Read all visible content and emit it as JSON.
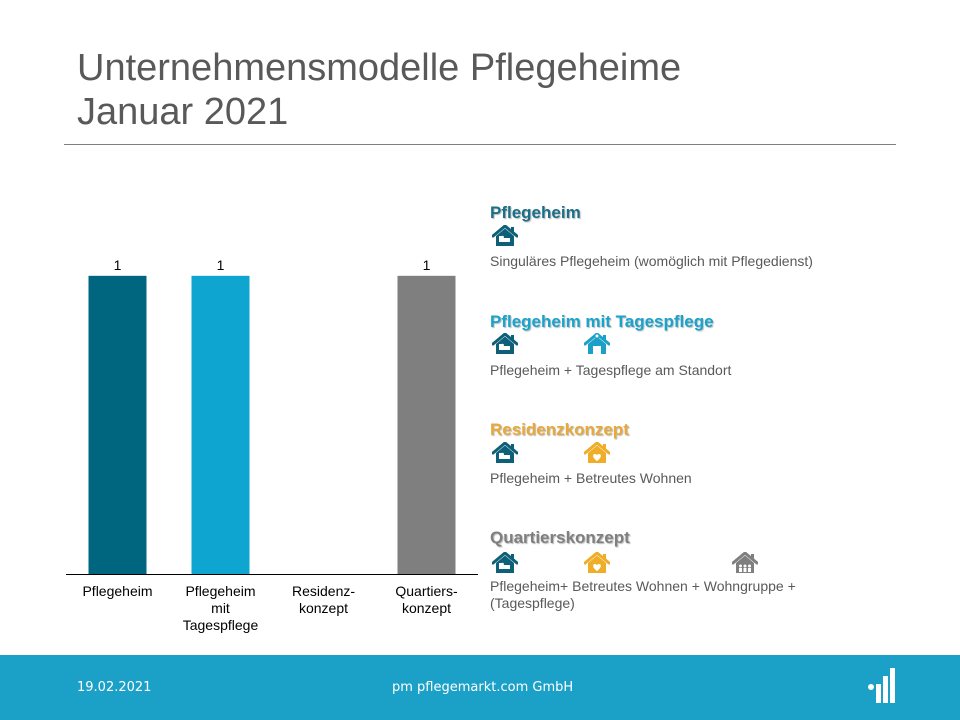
{
  "title_line1": "Unternehmensmodelle Pflegeheime",
  "title_line2": "Januar 2021",
  "chart_data": {
    "type": "bar",
    "categories": [
      "Pflegeheim",
      "Pflegeheim mit Tagespflege",
      "Residenz-konzept",
      "Quartiers-konzept"
    ],
    "category_lines": [
      [
        "Pflegeheim"
      ],
      [
        "Pflegeheim",
        "mit",
        "Tagespflege"
      ],
      [
        "Residenz-",
        "konzept"
      ],
      [
        "Quartiers-",
        "konzept"
      ]
    ],
    "values": [
      1,
      1,
      0,
      1
    ],
    "data_labels": [
      "1",
      "1",
      "",
      "1"
    ],
    "colors": [
      "#006680",
      "#0ea5d0",
      "#ffffff",
      "#7f7f7f"
    ],
    "ylim": [
      0,
      1.1
    ],
    "grid": false,
    "y_axis_visible": false
  },
  "legend": [
    {
      "title": "Pflegeheim",
      "color": "#1b6f88",
      "icons": [
        {
          "name": "nursing-home-icon",
          "color": "#0e5f78"
        }
      ],
      "description": "Singuläres Pflegeheim (womöglich mit Pflegedienst)"
    },
    {
      "title": "Pflegeheim mit Tagespflege",
      "color": "#1aa3cc",
      "icons": [
        {
          "name": "nursing-home-icon",
          "color": "#0e5f78"
        },
        {
          "name": "day-care-home-icon",
          "color": "#1ba1c8"
        }
      ],
      "description": "Pflegeheim + Tagespflege am Standort"
    },
    {
      "title": "Residenzkonzept",
      "color": "#e8a93a",
      "icons": [
        {
          "name": "nursing-home-icon",
          "color": "#0e5f78"
        },
        {
          "name": "assisted-living-icon",
          "color": "#f0ad28"
        }
      ],
      "description": "Pflegeheim + Betreutes Wohnen"
    },
    {
      "title": "Quartierskonzept",
      "color": "#7f7f7f",
      "icons": [
        {
          "name": "nursing-home-icon",
          "color": "#0e5f78"
        },
        {
          "name": "assisted-living-icon",
          "color": "#f0ad28"
        },
        {
          "name": "residential-group-icon",
          "color": "#7f7f7f"
        }
      ],
      "description": "Pflegeheim+ Betreutes Wohnen + Wohngruppe + (Tagespflege)"
    }
  ],
  "footer": {
    "date": "19.02.2021",
    "company": "pm pflegemarkt.com GmbH",
    "background": "#1ba1c8"
  }
}
